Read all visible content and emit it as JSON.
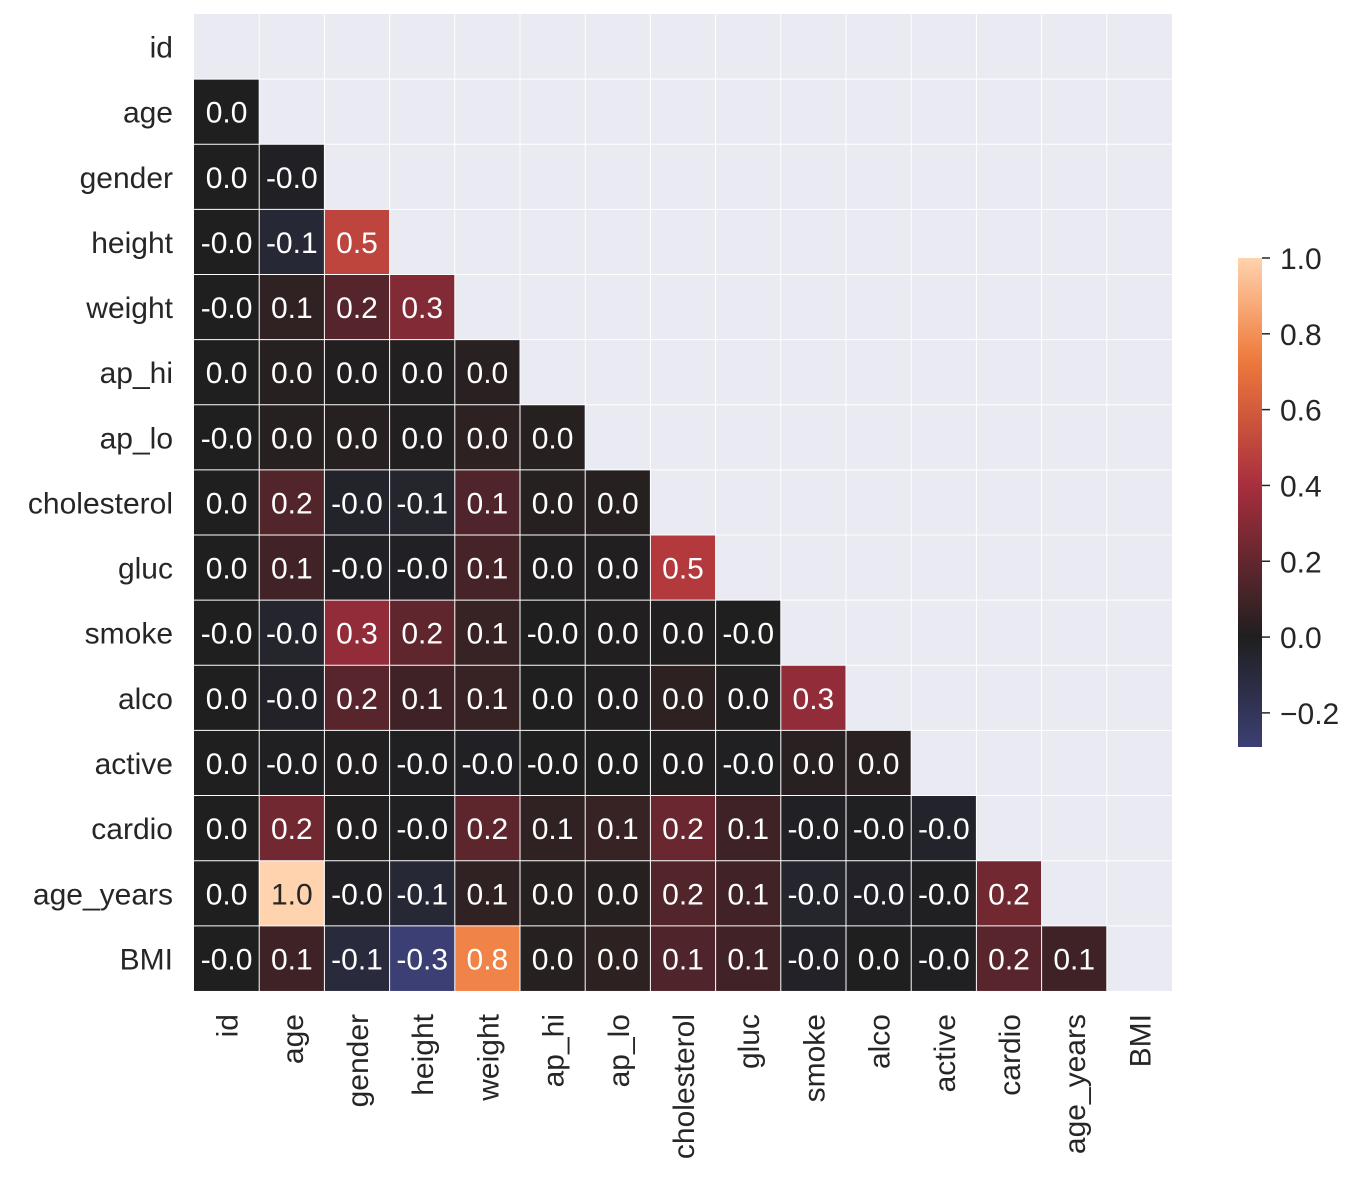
{
  "chart_data": {
    "type": "heatmap",
    "title": "",
    "xlabel": "",
    "ylabel": "",
    "variables": [
      "id",
      "age",
      "gender",
      "height",
      "weight",
      "ap_hi",
      "ap_lo",
      "cholesterol",
      "gluc",
      "smoke",
      "alco",
      "active",
      "cardio",
      "age_years",
      "BMI"
    ],
    "cell_labels": [
      [],
      [
        "0.0"
      ],
      [
        "0.0",
        "-0.0"
      ],
      [
        "-0.0",
        "-0.1",
        "0.5"
      ],
      [
        "-0.0",
        "0.1",
        "0.2",
        "0.3"
      ],
      [
        "0.0",
        "0.0",
        "0.0",
        "0.0",
        "0.0"
      ],
      [
        "-0.0",
        "0.0",
        "0.0",
        "0.0",
        "0.0",
        "0.0"
      ],
      [
        "0.0",
        "0.2",
        "-0.0",
        "-0.1",
        "0.1",
        "0.0",
        "0.0"
      ],
      [
        "0.0",
        "0.1",
        "-0.0",
        "-0.0",
        "0.1",
        "0.0",
        "0.0",
        "0.5"
      ],
      [
        "-0.0",
        "-0.0",
        "0.3",
        "0.2",
        "0.1",
        "-0.0",
        "0.0",
        "0.0",
        "-0.0"
      ],
      [
        "0.0",
        "-0.0",
        "0.2",
        "0.1",
        "0.1",
        "0.0",
        "0.0",
        "0.0",
        "0.0",
        "0.3"
      ],
      [
        "0.0",
        "-0.0",
        "0.0",
        "-0.0",
        "-0.0",
        "-0.0",
        "0.0",
        "0.0",
        "-0.0",
        "0.0",
        "0.0"
      ],
      [
        "0.0",
        "0.2",
        "0.0",
        "-0.0",
        "0.2",
        "0.1",
        "0.1",
        "0.2",
        "0.1",
        "-0.0",
        "-0.0",
        "-0.0"
      ],
      [
        "0.0",
        "1.0",
        "-0.0",
        "-0.1",
        "0.1",
        "0.0",
        "0.0",
        "0.2",
        "0.1",
        "-0.0",
        "-0.0",
        "-0.0",
        "0.2"
      ],
      [
        "-0.0",
        "0.1",
        "-0.1",
        "-0.3",
        "0.8",
        "0.0",
        "0.0",
        "0.1",
        "0.1",
        "-0.0",
        "0.0",
        "-0.0",
        "0.2",
        "0.1"
      ]
    ],
    "values": [
      [],
      [
        0.0
      ],
      [
        0.0,
        -0.02
      ],
      [
        -0.0,
        -0.08,
        0.5
      ],
      [
        -0.0,
        0.05,
        0.16,
        0.29
      ],
      [
        0.0,
        0.02,
        0.01,
        0.01,
        0.03
      ],
      [
        -0.0,
        0.02,
        0.02,
        0.01,
        0.04,
        0.02
      ],
      [
        0.0,
        0.15,
        -0.04,
        -0.05,
        0.14,
        0.02,
        0.02
      ],
      [
        0.0,
        0.1,
        -0.02,
        -0.02,
        0.11,
        0.01,
        0.01,
        0.45
      ],
      [
        -0.0,
        -0.05,
        0.34,
        0.19,
        0.07,
        -0.0,
        0.01,
        0.01,
        -0.0
      ],
      [
        0.0,
        -0.03,
        0.17,
        0.09,
        0.07,
        0.0,
        0.01,
        0.04,
        0.01,
        0.34
      ],
      [
        0.0,
        -0.01,
        0.01,
        -0.01,
        -0.02,
        -0.0,
        0.0,
        0.01,
        -0.01,
        0.03,
        0.03
      ],
      [
        0.0,
        0.24,
        0.01,
        -0.01,
        0.18,
        0.05,
        0.07,
        0.22,
        0.09,
        -0.02,
        -0.01,
        -0.04
      ],
      [
        0.0,
        1.0,
        -0.02,
        -0.08,
        0.05,
        0.02,
        0.02,
        0.15,
        0.1,
        -0.05,
        -0.03,
        -0.01,
        0.24
      ],
      [
        -0.0,
        0.09,
        -0.1,
        -0.29,
        0.76,
        0.02,
        0.04,
        0.14,
        0.1,
        -0.03,
        0.0,
        -0.01,
        0.17,
        0.09
      ]
    ],
    "colorbar": {
      "vmin": -0.29,
      "vmax": 1.0,
      "center": 0.0,
      "ticks": [
        "−0.2",
        "0.0",
        "0.2",
        "0.4",
        "0.6",
        "0.8",
        "1.0"
      ],
      "tick_values": [
        -0.2,
        0.0,
        0.2,
        0.4,
        0.6,
        0.8,
        1.0
      ]
    },
    "colormap_stops": [
      "#3b3f73",
      "#1f1f1f",
      "#a82e3d",
      "#ee7a3c",
      "#ffd3ad"
    ],
    "grid": true,
    "background": "#eaeaf2",
    "legend_position": "right"
  }
}
